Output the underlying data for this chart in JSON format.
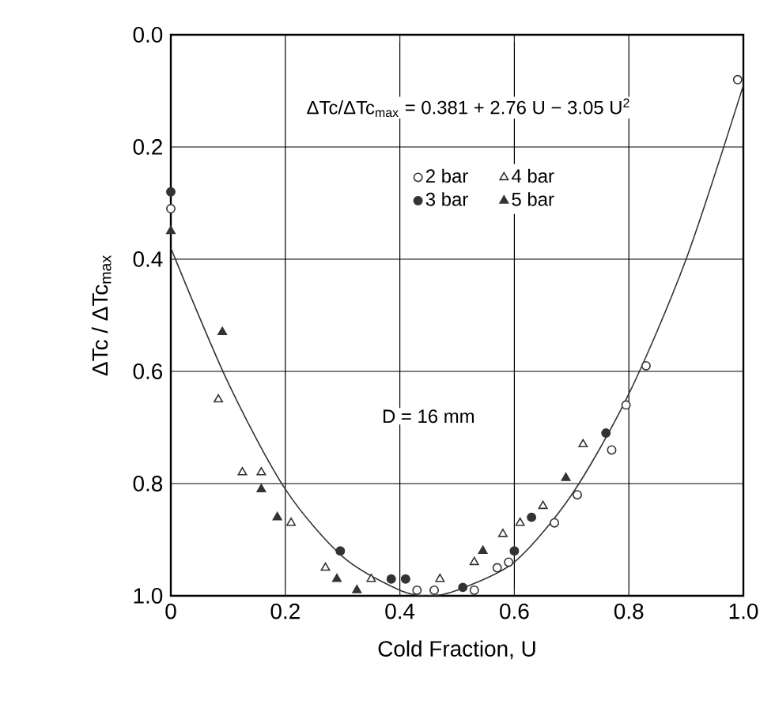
{
  "chart_data": {
    "type": "scatter",
    "xlabel": "Cold Fraction,  U",
    "ylabel": "ΔTc / ΔTc$_{max}$",
    "xlim": [
      0,
      1
    ],
    "ylim": [
      1,
      0
    ],
    "xticks": [
      0,
      0.2,
      0.4,
      0.6,
      0.8,
      {
        "value": 1,
        "label": "1.0"
      }
    ],
    "yticks": [
      {
        "value": 0,
        "label": "0.0"
      },
      0.2,
      0.4,
      0.6,
      0.8,
      {
        "value": 1,
        "label": "1.0"
      }
    ],
    "grid": true,
    "legend": "top",
    "annotations": [
      "ΔTc/ΔTc$_{max}$ = 0.381 + 2.76 U − 3.05 U$^{2}$",
      "D = 16 mm"
    ],
    "series": [
      {
        "name": "2 bar",
        "color": "#ffffff",
        "marker": "circle",
        "x": [
          0,
          0.43,
          0.46,
          0.53,
          0.57,
          0.59,
          0.67,
          0.71,
          0.77,
          0.795,
          0.83,
          0.99
        ],
        "values": [
          0.31,
          0.99,
          0.99,
          0.99,
          0.95,
          0.94,
          0.87,
          0.82,
          0.74,
          0.66,
          0.59,
          0.08
        ]
      },
      {
        "name": "3 bar",
        "color": "#333333",
        "marker": "circle",
        "x": [
          0,
          0.296,
          0.385,
          0.41,
          0.51,
          0.6,
          0.63,
          0.76
        ],
        "values": [
          0.28,
          0.92,
          0.97,
          0.97,
          0.985,
          0.92,
          0.86,
          0.71
        ]
      },
      {
        "name": "4 bar",
        "color": "#ffffff",
        "marker": "triangle",
        "x": [
          0.083,
          0.125,
          0.158,
          0.21,
          0.27,
          0.35,
          0.47,
          0.53,
          0.58,
          0.61,
          0.65,
          0.72
        ],
        "values": [
          0.65,
          0.78,
          0.78,
          0.87,
          0.95,
          0.97,
          0.97,
          0.94,
          0.89,
          0.87,
          0.84,
          0.73
        ]
      },
      {
        "name": "5 bar",
        "color": "#333333",
        "marker": "triangle",
        "x": [
          0,
          0.09,
          0.158,
          0.186,
          0.29,
          0.325,
          0.545,
          0.69
        ],
        "values": [
          0.35,
          0.53,
          0.81,
          0.86,
          0.97,
          0.99,
          0.92,
          0.79
        ]
      },
      {
        "type": "line",
        "color": "#333333",
        "marker": "none",
        "x": [
          0,
          0.1,
          0.2,
          0.3,
          0.4,
          0.45,
          0.5,
          0.6,
          0.7,
          0.8,
          0.9,
          1.0
        ],
        "values": [
          0.38,
          0.62,
          0.81,
          0.93,
          0.99,
          1.0,
          0.99,
          0.94,
          0.82,
          0.64,
          0.4,
          0.09
        ]
      }
    ]
  }
}
